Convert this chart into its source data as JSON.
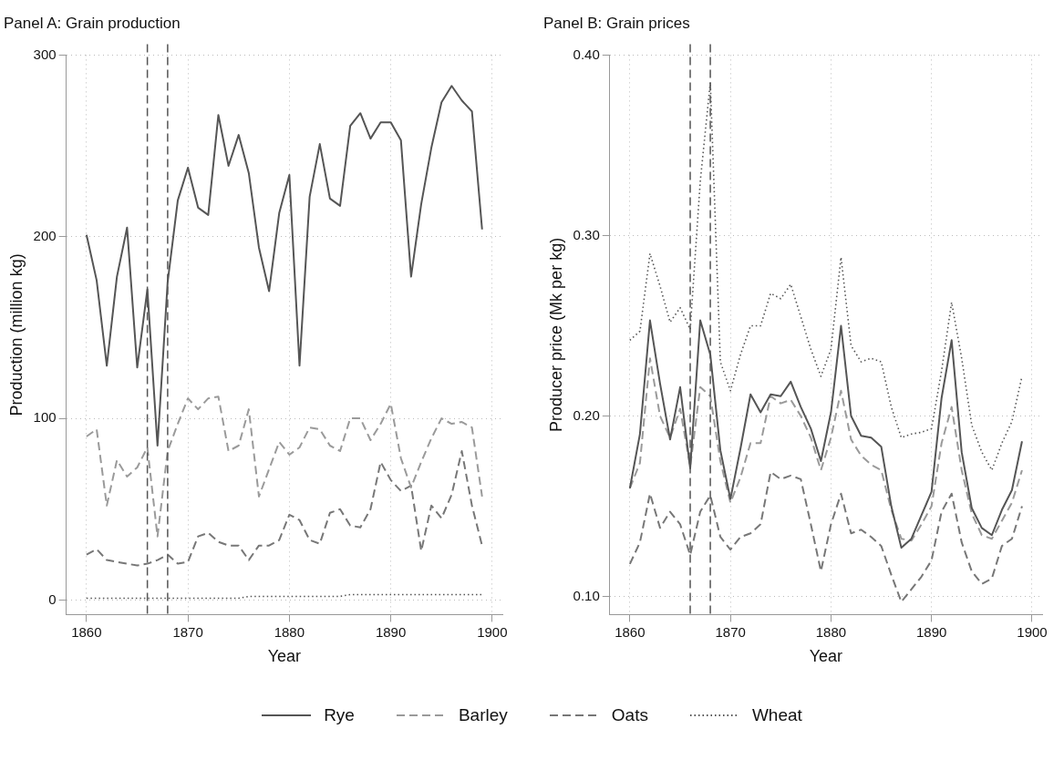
{
  "chart_data": [
    {
      "type": "line",
      "title": "Panel A: Grain production",
      "xlabel": "Year",
      "ylabel": "Production (million kg)",
      "x": [
        1860,
        1861,
        1862,
        1863,
        1864,
        1865,
        1866,
        1867,
        1868,
        1869,
        1870,
        1871,
        1872,
        1873,
        1874,
        1875,
        1876,
        1877,
        1878,
        1879,
        1880,
        1881,
        1882,
        1883,
        1884,
        1885,
        1886,
        1887,
        1888,
        1889,
        1890,
        1891,
        1892,
        1893,
        1894,
        1895,
        1896,
        1897,
        1898,
        1899
      ],
      "series": [
        {
          "name": "Rye",
          "color": "#555555",
          "line_style": "solid",
          "values": [
            201,
            176,
            129,
            178,
            205,
            128,
            171,
            85,
            175,
            220,
            238,
            216,
            212,
            267,
            239,
            256,
            235,
            194,
            170,
            213,
            234,
            129,
            222,
            251,
            221,
            217,
            261,
            268,
            254,
            263,
            263,
            253,
            178,
            218,
            249,
            274,
            283,
            275,
            269,
            204
          ]
        },
        {
          "name": "Barley",
          "color": "#9a9a9a",
          "line_style": "dashed",
          "values": [
            90,
            94,
            52,
            77,
            68,
            73,
            84,
            35,
            82,
            97,
            111,
            105,
            111,
            112,
            82,
            85,
            105,
            57,
            72,
            87,
            80,
            84,
            95,
            94,
            85,
            82,
            100,
            100,
            88,
            97,
            108,
            78,
            62,
            76,
            89,
            100,
            97,
            98,
            95,
            57
          ]
        },
        {
          "name": "Oats",
          "color": "#777777",
          "line_style": "dashed",
          "values": [
            25,
            28,
            22,
            21,
            20,
            19,
            20,
            22,
            25,
            20,
            21,
            35,
            37,
            32,
            30,
            30,
            22,
            30,
            30,
            33,
            47,
            44,
            33,
            31,
            48,
            50,
            41,
            40,
            50,
            76,
            66,
            60,
            63,
            27,
            52,
            45,
            58,
            82,
            52,
            30
          ]
        },
        {
          "name": "Wheat",
          "color": "#555555",
          "line_style": "dotted",
          "values": [
            1,
            1,
            1,
            1,
            1,
            1,
            1,
            1,
            1,
            1,
            1,
            1,
            1,
            1,
            1,
            1,
            2,
            2,
            2,
            2,
            2,
            2,
            2,
            2,
            2,
            2,
            3,
            3,
            3,
            3,
            3,
            3,
            3,
            3,
            3,
            3,
            3,
            3,
            3,
            3
          ]
        }
      ],
      "xlim": [
        1858,
        1901
      ],
      "xticks": [
        1860,
        1870,
        1880,
        1890,
        1900
      ],
      "ylim": [
        -8,
        300
      ],
      "yticks": [
        0,
        100,
        200,
        300
      ],
      "grid": true,
      "legend": "bottom",
      "ref_lines": [
        {
          "axis": "x",
          "value": 1866,
          "line_style": "dashed",
          "color": "#555555"
        },
        {
          "axis": "x",
          "value": 1868,
          "line_style": "dashed",
          "color": "#555555"
        }
      ]
    },
    {
      "type": "line",
      "title": "Panel B: Grain prices",
      "xlabel": "Year",
      "ylabel": "Producer price (Mk per kg)",
      "x": [
        1860,
        1861,
        1862,
        1863,
        1864,
        1865,
        1866,
        1867,
        1868,
        1869,
        1870,
        1871,
        1872,
        1873,
        1874,
        1875,
        1876,
        1877,
        1878,
        1879,
        1880,
        1881,
        1882,
        1883,
        1884,
        1885,
        1886,
        1887,
        1888,
        1889,
        1890,
        1891,
        1892,
        1893,
        1894,
        1895,
        1896,
        1897,
        1898,
        1899
      ],
      "series": [
        {
          "name": "Rye",
          "color": "#555555",
          "line_style": "solid",
          "values": [
            0.16,
            0.19,
            0.253,
            0.218,
            0.187,
            0.216,
            0.171,
            0.253,
            0.234,
            0.181,
            0.154,
            0.182,
            0.212,
            0.202,
            0.212,
            0.211,
            0.219,
            0.205,
            0.193,
            0.175,
            0.202,
            0.25,
            0.2,
            0.189,
            0.188,
            0.183,
            0.15,
            0.127,
            0.132,
            0.145,
            0.158,
            0.21,
            0.242,
            0.18,
            0.149,
            0.138,
            0.134,
            0.148,
            0.159,
            0.186
          ]
        },
        {
          "name": "Barley",
          "color": "#9a9a9a",
          "line_style": "dashed",
          "values": [
            0.16,
            0.174,
            0.232,
            0.2,
            0.188,
            0.204,
            0.172,
            0.216,
            0.211,
            0.175,
            0.152,
            0.166,
            0.185,
            0.185,
            0.211,
            0.207,
            0.209,
            0.2,
            0.188,
            0.17,
            0.188,
            0.214,
            0.187,
            0.178,
            0.173,
            0.17,
            0.148,
            0.132,
            0.131,
            0.14,
            0.15,
            0.185,
            0.205,
            0.17,
            0.146,
            0.134,
            0.132,
            0.142,
            0.152,
            0.17
          ]
        },
        {
          "name": "Oats",
          "color": "#777777",
          "line_style": "dashed",
          "values": [
            0.118,
            0.13,
            0.157,
            0.138,
            0.147,
            0.14,
            0.123,
            0.147,
            0.156,
            0.133,
            0.126,
            0.133,
            0.135,
            0.14,
            0.169,
            0.165,
            0.167,
            0.165,
            0.14,
            0.114,
            0.14,
            0.157,
            0.135,
            0.137,
            0.133,
            0.128,
            0.112,
            0.097,
            0.104,
            0.111,
            0.12,
            0.147,
            0.157,
            0.13,
            0.114,
            0.107,
            0.11,
            0.128,
            0.132,
            0.15
          ]
        },
        {
          "name": "Wheat",
          "color": "#555555",
          "line_style": "dotted",
          "values": [
            0.242,
            0.247,
            0.29,
            0.272,
            0.252,
            0.26,
            0.248,
            0.33,
            0.385,
            0.23,
            0.214,
            0.234,
            0.25,
            0.25,
            0.268,
            0.265,
            0.273,
            0.255,
            0.237,
            0.222,
            0.237,
            0.288,
            0.239,
            0.23,
            0.232,
            0.23,
            0.205,
            0.188,
            0.19,
            0.191,
            0.193,
            0.225,
            0.263,
            0.232,
            0.195,
            0.18,
            0.17,
            0.185,
            0.197,
            0.222
          ]
        }
      ],
      "xlim": [
        1858,
        1901
      ],
      "xticks": [
        1860,
        1870,
        1880,
        1890,
        1900
      ],
      "ylim": [
        0.09,
        0.4
      ],
      "yticks": [
        {
          "value": 0.1,
          "label": "0.10"
        },
        {
          "value": 0.2,
          "label": "0.20"
        },
        {
          "value": 0.3,
          "label": "0.30"
        },
        {
          "value": 0.4,
          "label": "0.40"
        }
      ],
      "grid": true,
      "legend": "bottom",
      "ref_lines": [
        {
          "axis": "x",
          "value": 1866,
          "line_style": "dashed",
          "color": "#555555"
        },
        {
          "axis": "x",
          "value": 1868,
          "line_style": "dashed",
          "color": "#555555"
        }
      ]
    }
  ]
}
